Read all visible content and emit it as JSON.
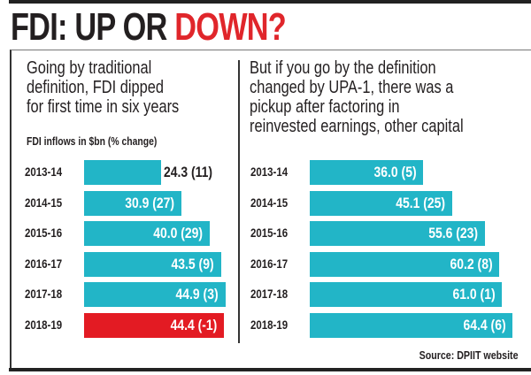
{
  "title": {
    "part1": "FDI: UP OR ",
    "part2": "DOWN?"
  },
  "colors": {
    "bar": "#22b5c7",
    "highlight": "#e31b23",
    "title_red": "#e0262b",
    "text": "#231f20"
  },
  "unit_label": "FDI inflows in $bn (% change)",
  "source": "Source: DPIIT website",
  "chart_data": [
    {
      "type": "bar",
      "orientation": "horizontal",
      "subtitle_lines": [
        "Going by traditional",
        "definition, FDI dipped",
        "for first time in six years"
      ],
      "categories": [
        "2013-14",
        "2014-15",
        "2015-16",
        "2016-17",
        "2017-18",
        "2018-19"
      ],
      "values": [
        24.3,
        30.9,
        40.0,
        43.5,
        44.9,
        44.4
      ],
      "pct_change": [
        "11",
        "27",
        "29",
        "9",
        "3",
        "-1"
      ],
      "highlighted": [
        "2018-19"
      ]
    },
    {
      "type": "bar",
      "orientation": "horizontal",
      "subtitle_lines": [
        "But if you go by the definition",
        "changed by UPA-1, there was a",
        "pickup after factoring in",
        "reinvested earnings, other capital"
      ],
      "categories": [
        "2013-14",
        "2014-15",
        "2015-16",
        "2016-17",
        "2017-18",
        "2018-19"
      ],
      "values": [
        36.0,
        45.1,
        55.6,
        60.2,
        61.0,
        64.4
      ],
      "pct_change": [
        "5",
        "25",
        "23",
        "8",
        "1",
        "6"
      ],
      "highlighted": []
    }
  ]
}
